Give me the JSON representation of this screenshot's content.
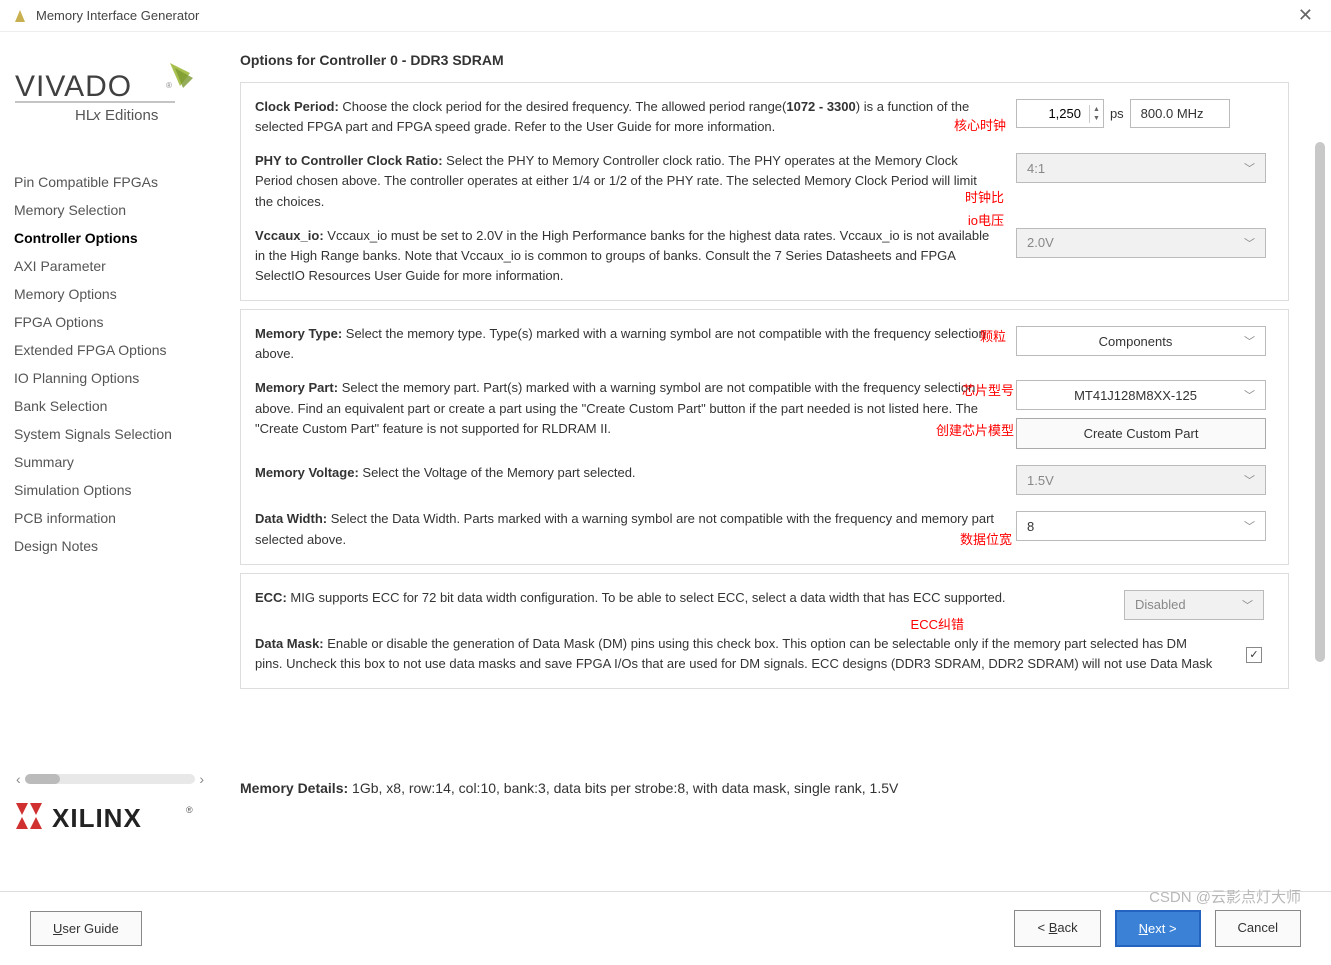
{
  "window": {
    "title": "Memory Interface Generator"
  },
  "logo": {
    "hlx": "HLx Editions",
    "xilinx": "XILINX"
  },
  "nav": {
    "items": [
      {
        "label": "Pin Compatible FPGAs",
        "active": false
      },
      {
        "label": "Memory Selection",
        "active": false
      },
      {
        "label": "Controller Options",
        "active": true
      },
      {
        "label": "AXI Parameter",
        "active": false
      },
      {
        "label": "Memory Options",
        "active": false
      },
      {
        "label": "FPGA Options",
        "active": false
      },
      {
        "label": "Extended FPGA Options",
        "active": false
      },
      {
        "label": "IO Planning Options",
        "active": false
      },
      {
        "label": "Bank Selection",
        "active": false
      },
      {
        "label": "System Signals Selection",
        "active": false
      },
      {
        "label": "Summary",
        "active": false
      },
      {
        "label": "Simulation Options",
        "active": false
      },
      {
        "label": "PCB information",
        "active": false
      },
      {
        "label": "Design Notes",
        "active": false
      }
    ]
  },
  "page": {
    "title": "Options for Controller 0 - DDR3 SDRAM",
    "clock_period": {
      "label": "Clock Period:",
      "desc_before": " Choose the clock period for the desired frequency. The allowed period range(",
      "range": "1072 - 3300",
      "desc_after": ") is a function of the selected FPGA part and FPGA speed grade. Refer to the User Guide for more information.",
      "value": "1,250",
      "unit": "ps",
      "freq": "800.0 MHz",
      "annot": "核心时钟"
    },
    "phy_ratio": {
      "label": "PHY to Controller Clock Ratio:",
      "desc": " Select the PHY to Memory Controller clock ratio. The PHY operates at the Memory Clock Period chosen above. The controller operates at either 1/4 or 1/2 of the PHY rate. The selected Memory Clock Period will limit the choices.",
      "value": "4:1",
      "annot": "时钟比"
    },
    "vccaux": {
      "label": "Vccaux_io:",
      "desc": " Vccaux_io must be set to 2.0V in the High Performance banks for the highest data rates. Vccaux_io is not available in the High Range banks. Note that Vccaux_io is common to groups of banks. Consult the 7 Series Datasheets and FPGA SelectIO Resources User Guide for more information.",
      "value": "2.0V",
      "annot": "io电压"
    },
    "mem_type": {
      "label": "Memory Type:",
      "desc": " Select the memory type. Type(s) marked with a warning symbol are not compatible with the frequency selection above.",
      "value": "Components",
      "annot": "颗粒"
    },
    "mem_part": {
      "label": "Memory Part:",
      "desc": " Select the memory part. Part(s) marked with a warning symbol are not compatible with the frequency selection above. Find an equivalent part or create a part using the \"Create Custom Part\" button if the part needed is not listed here. The \"Create Custom Part\" feature is not supported for RLDRAM II.",
      "value": "MT41J128M8XX-125",
      "button": "Create Custom Part",
      "annot_part": "芯片型号",
      "annot_btn": "创建芯片模型"
    },
    "mem_voltage": {
      "label": "Memory Voltage:",
      "desc": " Select the Voltage of the Memory part selected.",
      "value": "1.5V"
    },
    "data_width": {
      "label": "Data Width:",
      "desc": " Select the Data Width. Parts marked with a warning symbol are not compatible with the frequency and memory part selected above.",
      "value": "8",
      "annot": "数据位宽"
    },
    "ecc": {
      "label": "ECC:",
      "desc": " MIG supports ECC for 72 bit data width configuration. To be able to select ECC, select a data width that has ECC supported.",
      "value": "Disabled",
      "annot": "ECC纠错"
    },
    "data_mask": {
      "label": "Data Mask:",
      "desc": " Enable or disable the generation of Data Mask (DM) pins using this check box. This option can be selectable only if the memory part selected has DM pins. Uncheck this box to not use data masks and save FPGA I/Os that are used for DM signals. ECC designs (DDR3 SDRAM, DDR2 SDRAM) will not use Data Mask",
      "checked": true
    },
    "memory_details": {
      "label": "Memory Details:",
      "value": " 1Gb, x8, row:14, col:10, bank:3, data bits per strobe:8, with data mask, single rank, 1.5V"
    }
  },
  "footer": {
    "user_guide": "User Guide",
    "back": "< Back",
    "next": "Next >",
    "cancel": "Cancel"
  },
  "watermark": "CSDN @云影点灯大师"
}
